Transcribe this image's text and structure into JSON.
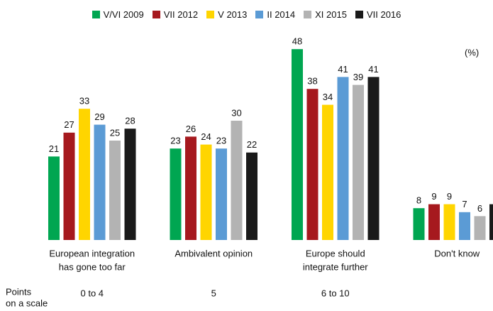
{
  "chart_data": {
    "type": "bar",
    "unit_label": "(%)",
    "categories": [
      [
        "European integration",
        "has gone too far"
      ],
      [
        "Ambivalent opinion"
      ],
      [
        "Europe should",
        "integrate further"
      ],
      [
        "Don't know"
      ]
    ],
    "scale_title": [
      "Points",
      "on a scale"
    ],
    "scale_labels": [
      "0 to 4",
      "5",
      "6 to 10"
    ],
    "series": [
      {
        "name": "V/VI 2009",
        "color": "#00a651",
        "values": [
          21,
          23,
          48,
          8
        ]
      },
      {
        "name": "VII 2012",
        "color": "#a6191e",
        "values": [
          27,
          26,
          38,
          9
        ]
      },
      {
        "name": "V 2013",
        "color": "#ffd500",
        "values": [
          33,
          24,
          34,
          9
        ]
      },
      {
        "name": "II 2014",
        "color": "#5b9bd5",
        "values": [
          29,
          23,
          41,
          7
        ]
      },
      {
        "name": "XI 2015",
        "color": "#b3b3b3",
        "values": [
          25,
          30,
          39,
          6
        ]
      },
      {
        "name": "VII 2016",
        "color": "#1a1a1a",
        "values": [
          28,
          22,
          41,
          9
        ]
      }
    ]
  }
}
